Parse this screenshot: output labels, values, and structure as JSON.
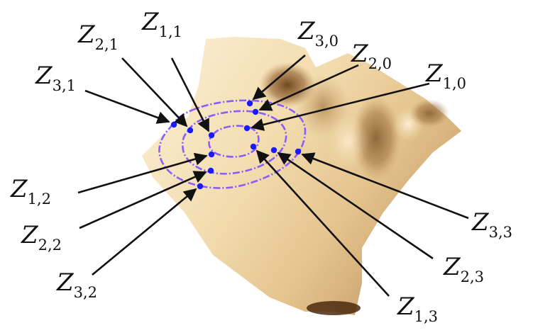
{
  "colors": {
    "surface_light": "#f6e6c2",
    "surface_mid": "#e2c08a",
    "surface_dark": "#7a4a1e",
    "contour": "#8a5cff",
    "points": "#1a1aff",
    "ink": "#111111"
  },
  "labels": [
    {
      "id": "z-3-0",
      "main": "Z",
      "sub": "3,0"
    },
    {
      "id": "z-2-0",
      "main": "Z",
      "sub": "2,0"
    },
    {
      "id": "z-1-0",
      "main": "Z",
      "sub": "1,0"
    },
    {
      "id": "z-1-1",
      "main": "Z",
      "sub": "1,1"
    },
    {
      "id": "z-2-1",
      "main": "Z",
      "sub": "2,1"
    },
    {
      "id": "z-3-1",
      "main": "Z",
      "sub": "3,1"
    },
    {
      "id": "z-1-2",
      "main": "Z",
      "sub": "1,2"
    },
    {
      "id": "z-2-2",
      "main": "Z",
      "sub": "2,2"
    },
    {
      "id": "z-3-2",
      "main": "Z",
      "sub": "3,2"
    },
    {
      "id": "z-1-3",
      "main": "Z",
      "sub": "1,3"
    },
    {
      "id": "z-2-3",
      "main": "Z",
      "sub": "2,3"
    },
    {
      "id": "z-3-3",
      "main": "Z",
      "sub": "3,3"
    }
  ]
}
